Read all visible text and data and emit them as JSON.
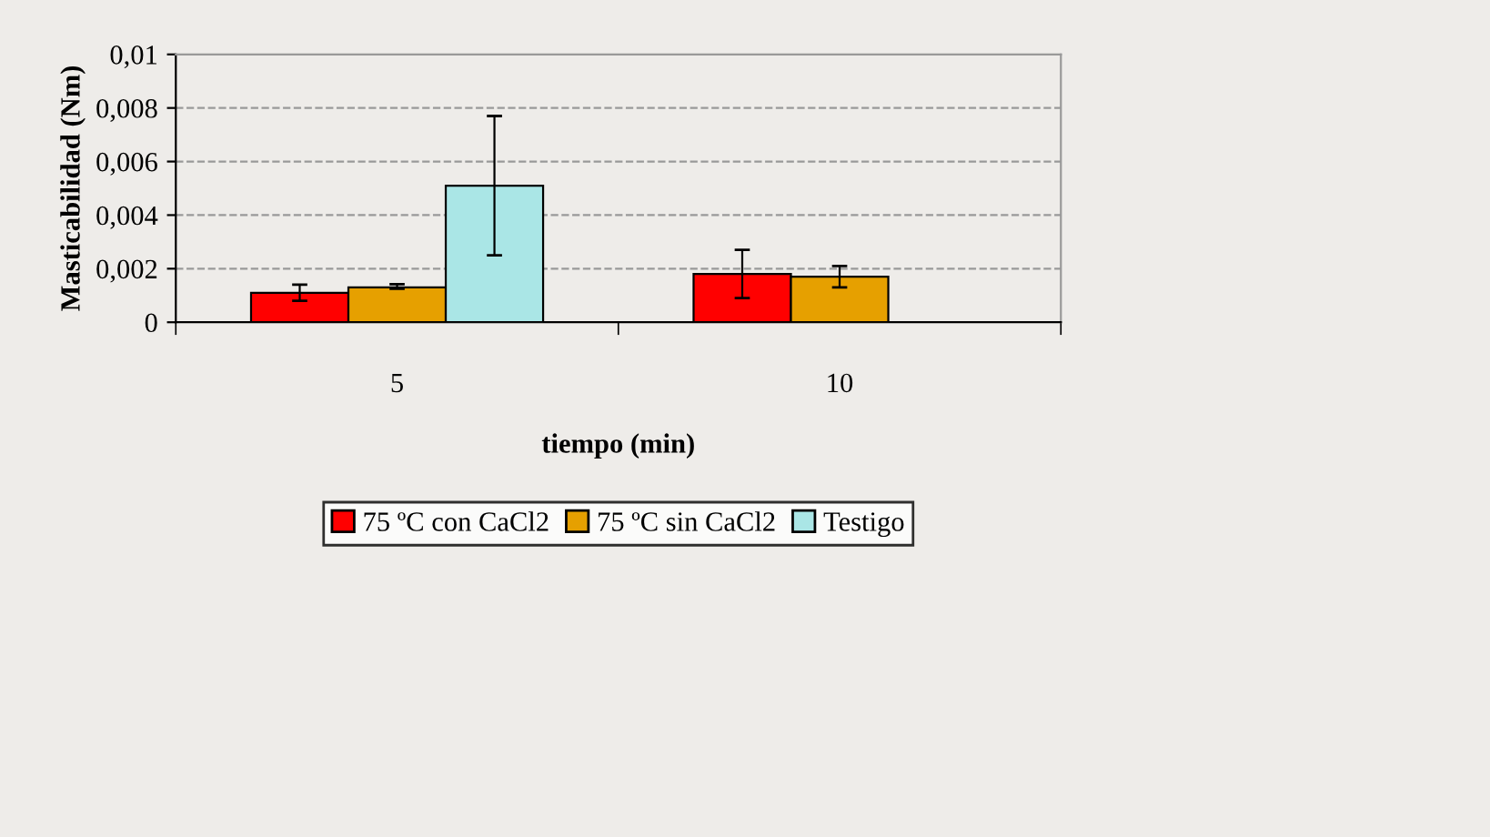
{
  "chart_data": {
    "type": "bar",
    "xlabel": "tiempo (min)",
    "ylabel": "Masticabilidad (Nm)",
    "categories": [
      "5",
      "10"
    ],
    "series": [
      {
        "name": "75 ºC con CaCl2",
        "color": "#ff0000",
        "values": [
          0.0011,
          0.0018
        ],
        "errors": [
          [
            0.0008,
            0.0014
          ],
          [
            0.0009,
            0.0027
          ]
        ]
      },
      {
        "name": "75 ºC sin CaCl2",
        "color": "#e6a000",
        "values": [
          0.0013,
          0.0017
        ],
        "errors": [
          [
            0.00125,
            0.00142
          ],
          [
            0.0013,
            0.0021
          ]
        ]
      },
      {
        "name": "Testigo",
        "color": "#aae6e6",
        "values": [
          0.0051,
          null
        ],
        "errors": [
          [
            0.0025,
            0.0077
          ],
          null
        ]
      }
    ],
    "ylim": [
      0,
      0.01
    ],
    "yticks": [
      0,
      {
        "value": 0.002,
        "label": "0,002"
      },
      {
        "value": 0.004,
        "label": "0,004"
      },
      {
        "value": 0.006,
        "label": "0,006"
      },
      {
        "value": 0.008,
        "label": "0,008"
      },
      {
        "value": 0.01,
        "label": "0,01"
      }
    ],
    "grid": "y",
    "legend": "bottom"
  }
}
